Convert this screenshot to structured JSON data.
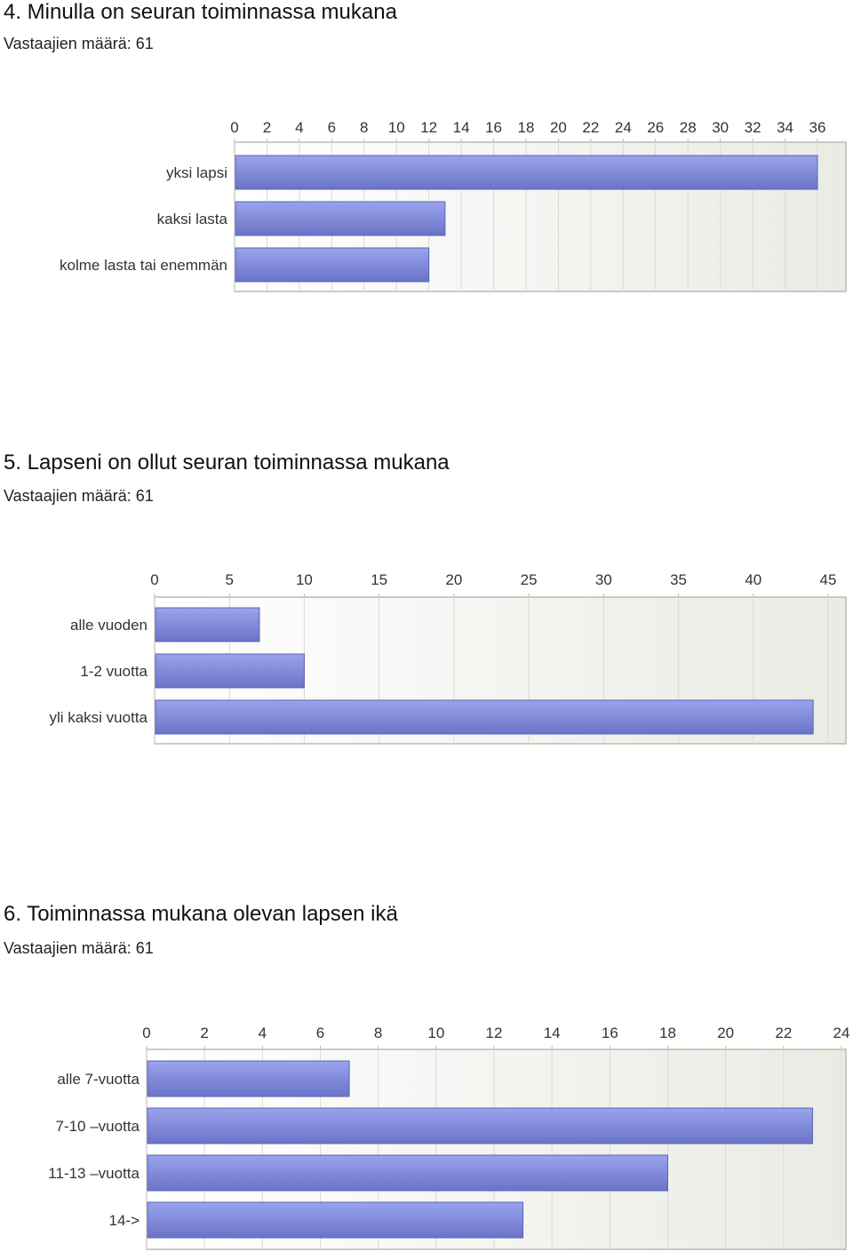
{
  "sections": [
    {
      "title": "4. Minulla on seuran toiminnassa mukana",
      "respondents": "Vastaajien määrä: 61"
    },
    {
      "title": "5. Lapseni on ollut seuran toiminnassa mukana",
      "respondents": "Vastaajien määrä: 61"
    },
    {
      "title": "6. Toiminnassa mukana olevan lapsen ikä",
      "respondents": "Vastaajien määrä: 61"
    }
  ],
  "colors": {
    "bar_top": "#9aa3ec",
    "bar_bottom": "#6a74c8",
    "bar_stroke": "#5a63b4",
    "plot_bg_left": "#ffffff",
    "plot_bg_right": "#e9ebe4",
    "grid": "#d9dbd3",
    "frame": "#b9bcb2"
  },
  "chart_data": [
    {
      "type": "bar",
      "orientation": "horizontal",
      "title": "4. Minulla on seuran toiminnassa mukana",
      "categories": [
        "yksi lapsi",
        "kaksi lasta",
        "kolme lasta tai enemmän"
      ],
      "values": [
        36,
        13,
        12
      ],
      "xlim": [
        0,
        36
      ],
      "ticks": [
        0,
        2,
        4,
        6,
        8,
        10,
        12,
        14,
        16,
        18,
        20,
        22,
        24,
        26,
        28,
        30,
        32,
        34,
        36
      ],
      "grid": true
    },
    {
      "type": "bar",
      "orientation": "horizontal",
      "title": "5. Lapseni on ollut seuran toiminnassa mukana",
      "categories": [
        "alle vuoden",
        "1-2 vuotta",
        "yli kaksi vuotta"
      ],
      "values": [
        7,
        10,
        44
      ],
      "xlim": [
        0,
        45
      ],
      "ticks": [
        0,
        5,
        10,
        15,
        20,
        25,
        30,
        35,
        40,
        45
      ],
      "grid": true
    },
    {
      "type": "bar",
      "orientation": "horizontal",
      "title": "6. Toiminnassa mukana olevan lapsen ikä",
      "categories": [
        "alle 7-vuotta",
        "7-10 –vuotta",
        "11-13 –vuotta",
        "14->"
      ],
      "values": [
        7,
        23,
        18,
        13
      ],
      "xlim": [
        0,
        24
      ],
      "ticks": [
        0,
        2,
        4,
        6,
        8,
        10,
        12,
        14,
        16,
        18,
        20,
        22,
        24
      ],
      "grid": true
    }
  ]
}
